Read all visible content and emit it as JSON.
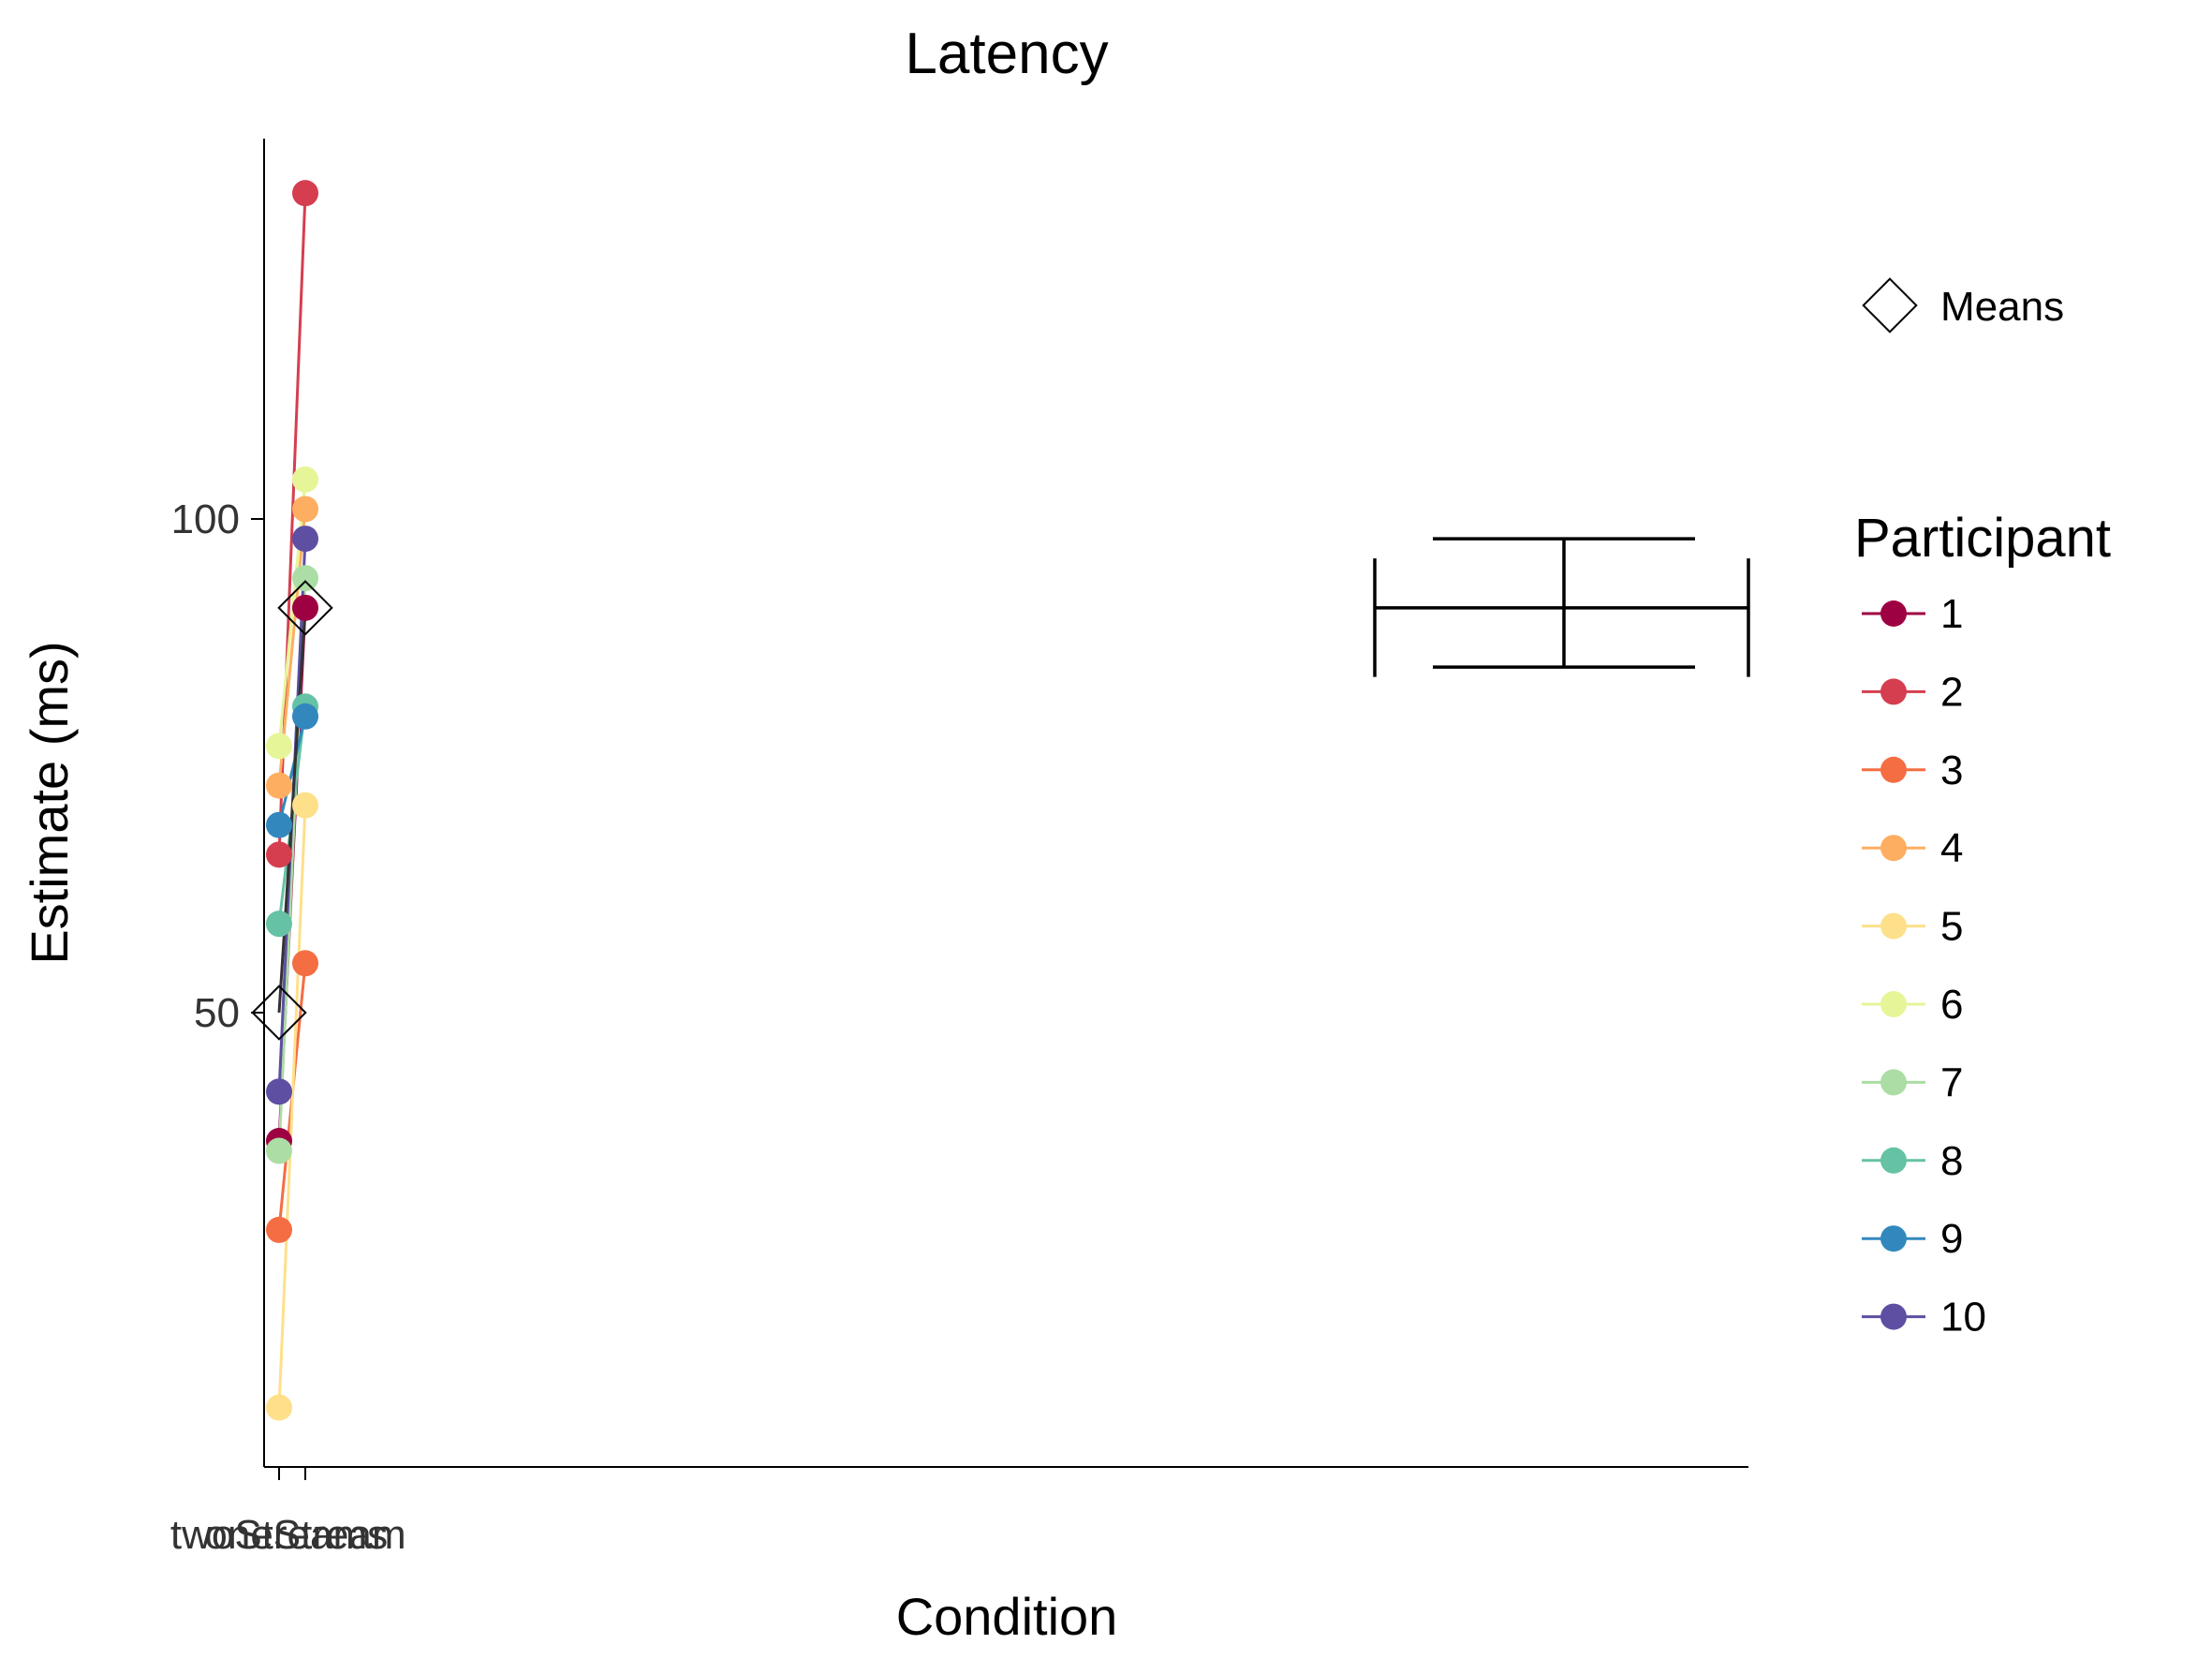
{
  "chart_data": {
    "type": "line",
    "title": "Latency",
    "xlabel": "Condition",
    "ylabel": "Estimate (ms)",
    "categories": [
      "twoStreams",
      "oneStream"
    ],
    "y_ticks": [
      50,
      100
    ],
    "ylim": [
      4,
      139
    ],
    "legend": {
      "means_label": "Means",
      "title": "Participant",
      "position": "right"
    },
    "series": [
      {
        "name": "1",
        "color": "#9e0142",
        "values": [
          37,
          91
        ]
      },
      {
        "name": "2",
        "color": "#d53e4f",
        "values": [
          66,
          133
        ]
      },
      {
        "name": "3",
        "color": "#f46d43",
        "values": [
          28,
          55
        ]
      },
      {
        "name": "4",
        "color": "#fdae61",
        "values": [
          73,
          101
        ]
      },
      {
        "name": "5",
        "color": "#fee08b",
        "values": [
          10,
          71
        ]
      },
      {
        "name": "6",
        "color": "#e6f598",
        "values": [
          77,
          104
        ]
      },
      {
        "name": "7",
        "color": "#abdda4",
        "values": [
          36,
          94
        ]
      },
      {
        "name": "8",
        "color": "#66c2a5",
        "values": [
          59,
          81
        ]
      },
      {
        "name": "9",
        "color": "#3288bd",
        "values": [
          69,
          80
        ]
      },
      {
        "name": "10",
        "color": "#5e4fa2",
        "values": [
          42,
          98
        ]
      }
    ],
    "means": [
      50,
      91
    ],
    "mean_line_color": "#333333",
    "error_bars": {
      "center": 91,
      "inner": [
        85,
        98
      ],
      "outer": [
        84,
        96
      ]
    }
  }
}
